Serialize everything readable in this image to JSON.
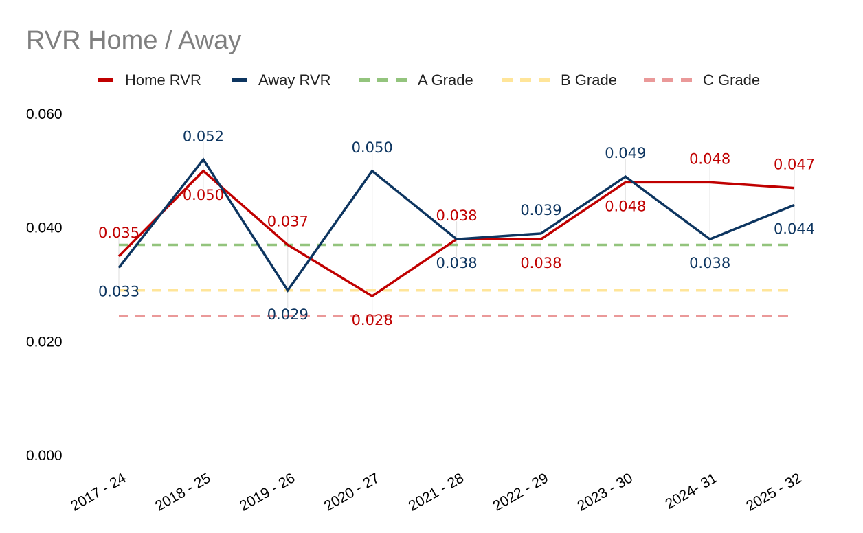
{
  "chart_data": {
    "type": "line",
    "title": "RVR Home / Away",
    "xlabel": "",
    "ylabel": "",
    "ylim": [
      0,
      0.06
    ],
    "yticks": [
      "0.000",
      "0.020",
      "0.040",
      "0.060"
    ],
    "ytick_values": [
      0,
      0.02,
      0.04,
      0.06
    ],
    "categories": [
      "2017 - 24",
      "2018 - 25",
      "2019 - 26",
      "2020 - 27",
      "2021 - 28",
      "2022 - 29",
      "2023 - 30",
      "2024- 31",
      "2025 - 32"
    ],
    "series": [
      {
        "name": "Home RVR",
        "color": "#c00000",
        "values": [
          0.035,
          0.05,
          0.037,
          0.028,
          0.038,
          0.038,
          0.048,
          0.048,
          0.047
        ],
        "labels": [
          "0.035",
          "0.050",
          "0.037",
          "0.028",
          "0.038",
          "0.038",
          "0.048",
          "0.048",
          "0.047"
        ]
      },
      {
        "name": "Away RVR",
        "color": "#0d3560",
        "values": [
          0.033,
          0.052,
          0.029,
          0.05,
          0.038,
          0.039,
          0.049,
          0.038,
          0.044
        ],
        "labels": [
          "0.033",
          "0.052",
          "0.029",
          "0.050",
          "0.038",
          "0.039",
          "0.049",
          "0.038",
          "0.044"
        ]
      }
    ],
    "reference_lines": [
      {
        "name": "A Grade",
        "value": 0.037,
        "color": "#93c47d"
      },
      {
        "name": "B Grade",
        "value": 0.029,
        "color": "#ffe599"
      },
      {
        "name": "C Grade",
        "value": 0.0245,
        "color": "#ea9999"
      }
    ],
    "legend_position": "top",
    "grid": false
  }
}
